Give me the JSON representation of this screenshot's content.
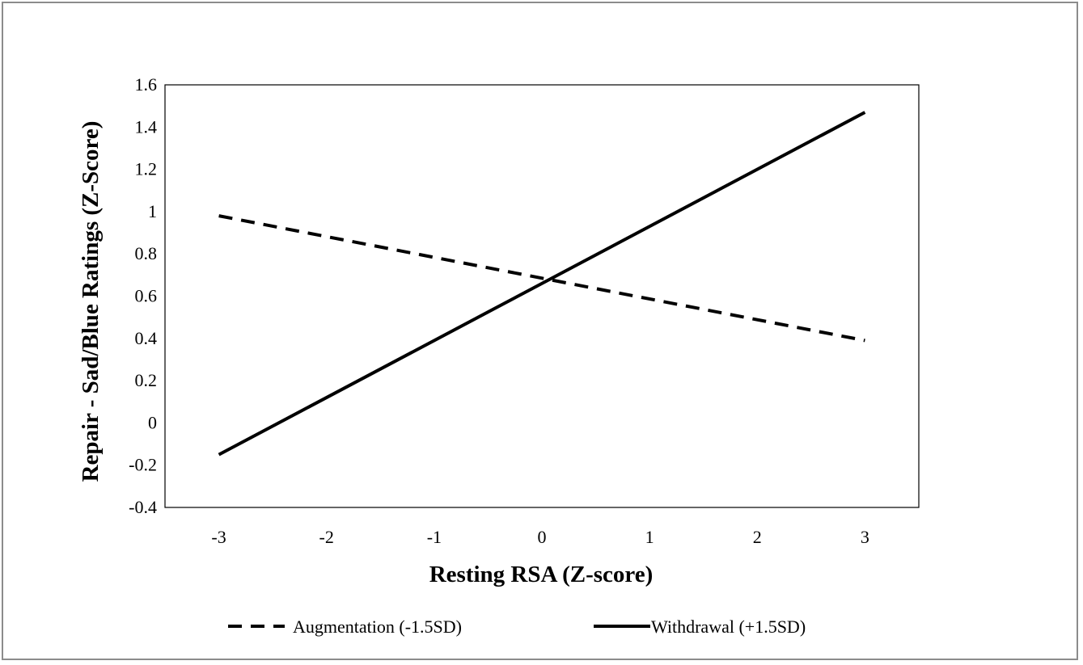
{
  "chart_data": {
    "type": "line",
    "xlabel": "Resting RSA (Z-score)",
    "ylabel": "Repair - Sad/Blue Ratings (Z-Score)",
    "xlim": [
      -3.5,
      3.5
    ],
    "ylim": [
      -0.4,
      1.6
    ],
    "x_ticks": [
      "-3",
      "-2",
      "-1",
      "0",
      "1",
      "2",
      "3"
    ],
    "y_ticks": [
      "-0.4",
      "-0.2",
      "0",
      "0.2",
      "0.4",
      "0.6",
      "0.8",
      "1",
      "1.2",
      "1.4",
      "1.6"
    ],
    "grid": false,
    "legend_position": "bottom",
    "series": [
      {
        "name": "Augmentation (-1.5SD)",
        "style": "dashed",
        "color": "#000000",
        "x": [
          -3,
          3
        ],
        "y": [
          0.98,
          0.39
        ]
      },
      {
        "name": "Withdrawal (+1.5SD)",
        "style": "solid",
        "color": "#000000",
        "x": [
          -3,
          3
        ],
        "y": [
          -0.15,
          1.47
        ]
      }
    ]
  }
}
